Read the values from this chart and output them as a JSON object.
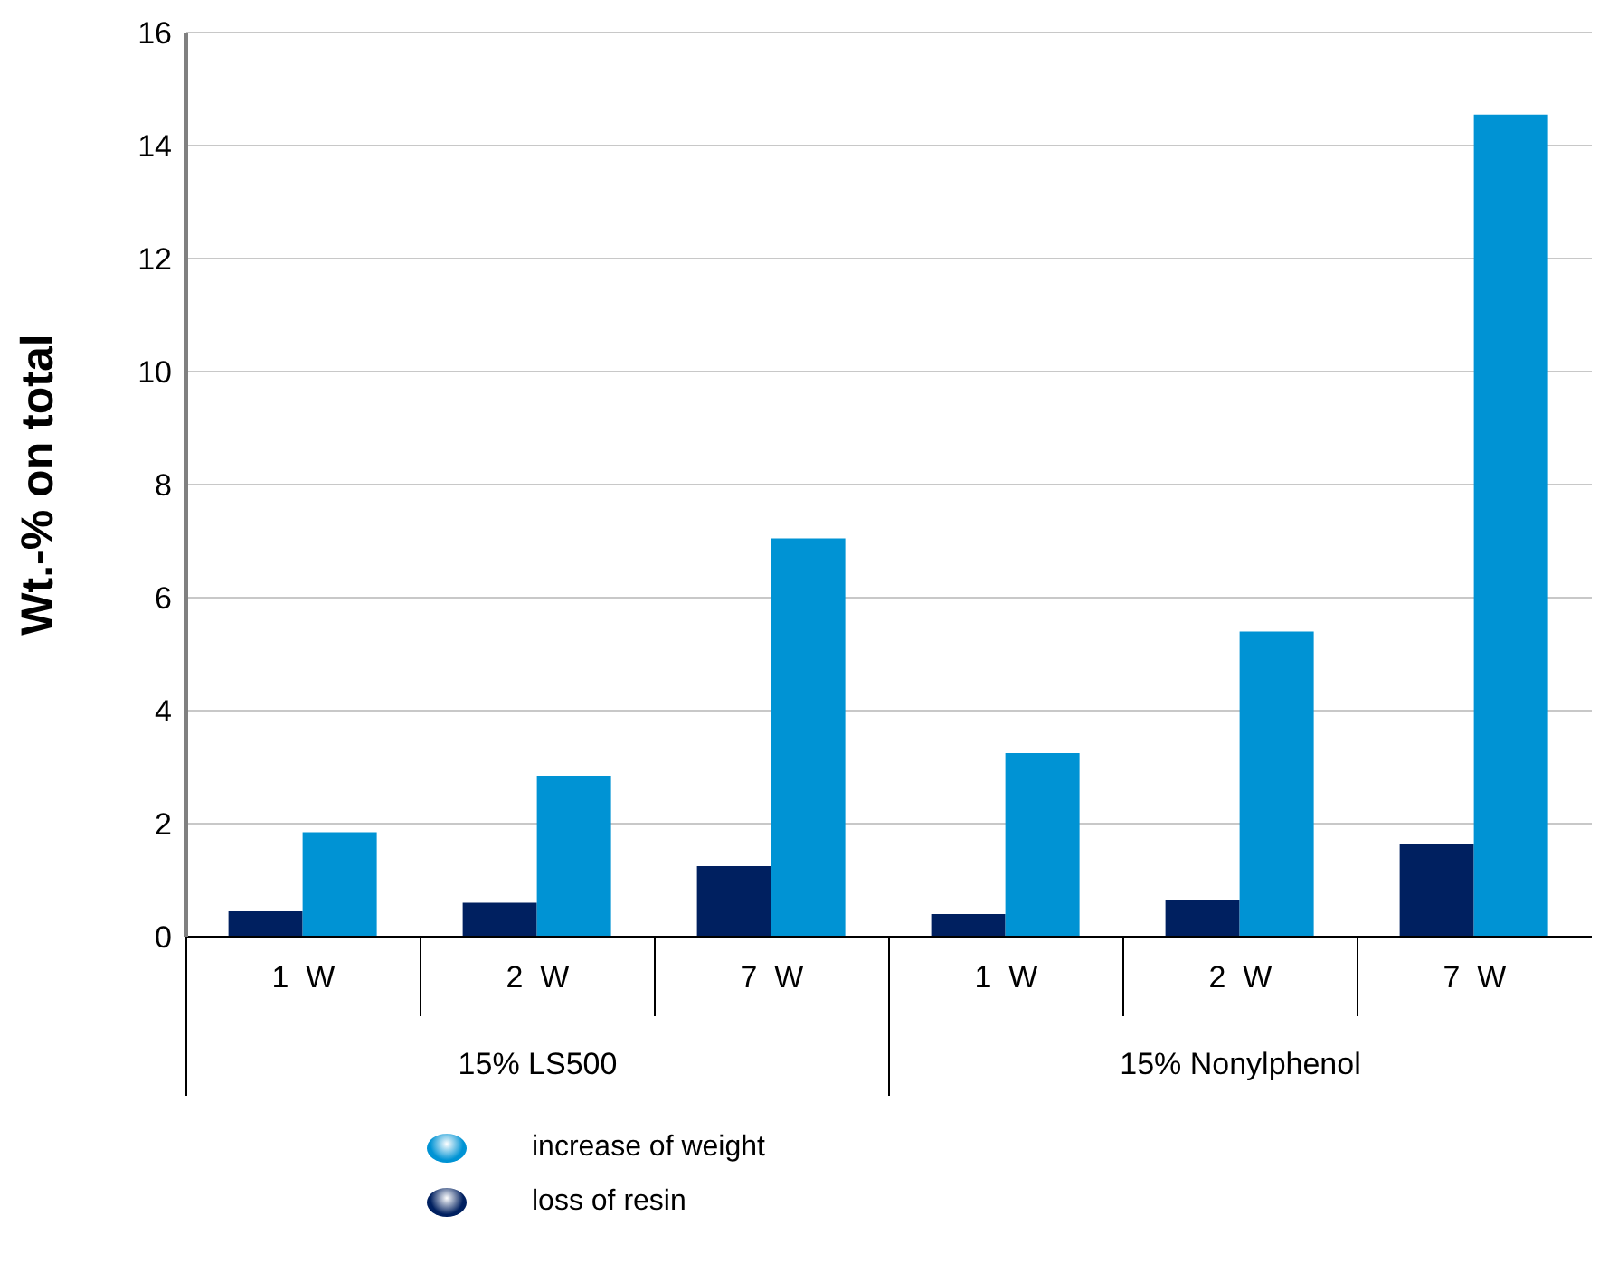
{
  "chart_data": {
    "type": "bar",
    "ylabel": "Wt.-% on total",
    "categories": [
      "1  W",
      "2  W",
      "7  W",
      "1  W",
      "2  W",
      "7  W"
    ],
    "annotations": [
      "15% LS500",
      "15% Nonylphenol"
    ],
    "series": [
      {
        "name": "loss of resin",
        "color": "#002060",
        "values": [
          0.45,
          0.6,
          1.25,
          0.4,
          0.65,
          1.65
        ]
      },
      {
        "name": "increase of weight",
        "color": "#0093d4",
        "values": [
          1.85,
          2.85,
          7.05,
          3.25,
          5.4,
          14.55
        ]
      }
    ],
    "ylim": [
      0,
      16
    ],
    "yticks": [
      0,
      2,
      4,
      6,
      8,
      10,
      12,
      14,
      16
    ],
    "grid": "y",
    "legend": "bottom"
  }
}
